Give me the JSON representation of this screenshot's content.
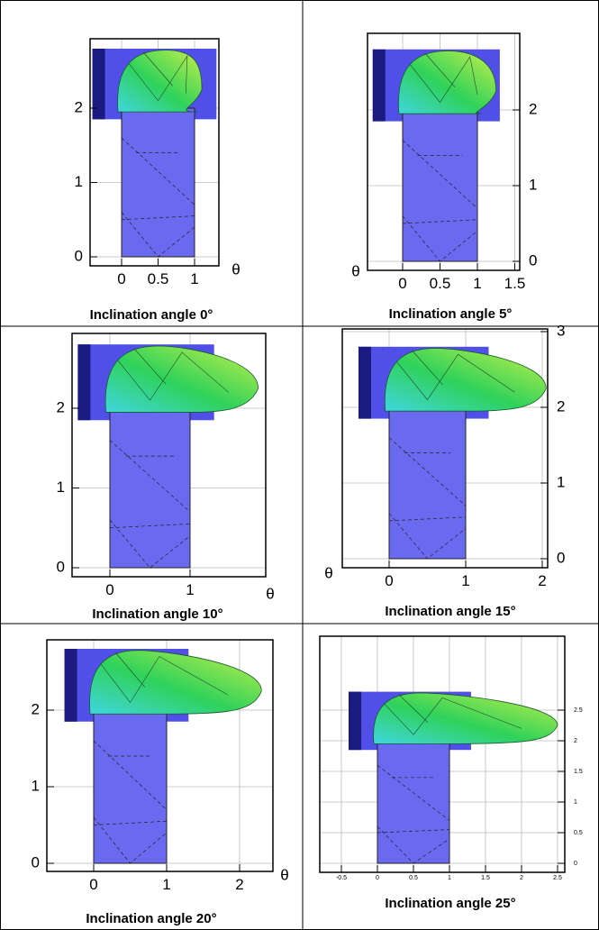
{
  "panels": [
    {
      "caption": "Inclination angle 0°",
      "x_ticks": [
        0,
        0.5,
        1
      ],
      "y_ticks": [
        0,
        1,
        2
      ],
      "axis_label": "θ"
    },
    {
      "caption": "Inclination angle 5°",
      "x_ticks": [
        0,
        0.5,
        1,
        1.5
      ],
      "y_ticks": [
        0,
        1,
        2
      ],
      "axis_label": "θ"
    },
    {
      "caption": "Inclination angle 10°",
      "x_ticks": [
        0,
        1
      ],
      "y_ticks": [
        0,
        1,
        2
      ],
      "axis_label": "θ"
    },
    {
      "caption": "Inclination angle 15°",
      "x_ticks": [
        0,
        1,
        2
      ],
      "y_ticks": [
        0,
        1,
        2,
        3
      ],
      "axis_label": "θ"
    },
    {
      "caption": "Inclination angle 20°",
      "x_ticks": [
        0,
        1,
        2
      ],
      "y_ticks": [
        0,
        1,
        2
      ],
      "axis_label": "θ"
    },
    {
      "caption": "Inclination angle 25°",
      "x_ticks": [
        -0.5,
        0,
        0.5,
        1,
        1.5,
        2,
        2.5
      ],
      "y_ticks": [
        0,
        0.5,
        1,
        1.5,
        2,
        2.5
      ]
    }
  ]
}
